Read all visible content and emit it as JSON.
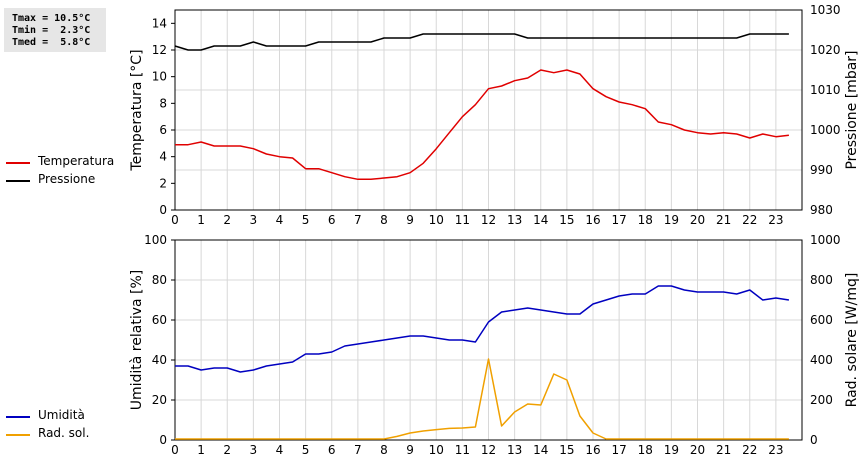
{
  "stats": [
    {
      "label": "Tmax",
      "value": "10.5°C"
    },
    {
      "label": "Tmin",
      "value": "2.3°C"
    },
    {
      "label": "Tmed",
      "value": "5.8°C"
    }
  ],
  "legend_top": [
    {
      "name": "Temperatura",
      "color": "#e00000"
    },
    {
      "name": "Pressione",
      "color": "#000000"
    }
  ],
  "legend_bottom": [
    {
      "name": "Umidità",
      "color": "#0000c0"
    },
    {
      "name": "Rad. sol.",
      "color": "#f0a000"
    }
  ],
  "chart_data": [
    {
      "type": "line",
      "x": [
        0,
        0.5,
        1,
        1.5,
        2,
        2.5,
        3,
        3.5,
        4,
        4.5,
        5,
        5.5,
        6,
        6.5,
        7,
        7.5,
        8,
        8.5,
        9,
        9.5,
        10,
        10.5,
        11,
        11.5,
        12,
        12.5,
        13,
        13.5,
        14,
        14.5,
        15,
        15.5,
        16,
        16.5,
        17,
        17.5,
        18,
        18.5,
        19,
        19.5,
        20,
        20.5,
        21,
        21.5,
        22,
        22.5,
        23,
        23.5
      ],
      "xlim": [
        0,
        24
      ],
      "xticks": [
        0,
        1,
        2,
        3,
        4,
        5,
        6,
        7,
        8,
        9,
        10,
        11,
        12,
        13,
        14,
        15,
        16,
        17,
        18,
        19,
        20,
        21,
        22,
        23
      ],
      "ylabel": "Temperatura [°C]",
      "ylim": [
        0,
        15
      ],
      "yticks": [
        0,
        2,
        4,
        6,
        8,
        10,
        12,
        14
      ],
      "y2label": "Pressione [mbar]",
      "y2lim": [
        980,
        1030
      ],
      "y2ticks": [
        980,
        990,
        1000,
        1010,
        1020,
        1030
      ],
      "grid": true,
      "series": [
        {
          "name": "Temperatura",
          "color": "#e00000",
          "axis": "left",
          "values": [
            4.9,
            4.9,
            5.1,
            4.8,
            4.8,
            4.8,
            4.6,
            4.2,
            4.0,
            3.9,
            3.1,
            3.1,
            2.8,
            2.5,
            2.3,
            2.3,
            2.4,
            2.5,
            2.8,
            3.5,
            4.6,
            5.8,
            7.0,
            7.9,
            9.1,
            9.3,
            9.7,
            9.9,
            10.5,
            10.3,
            10.5,
            10.2,
            9.1,
            8.5,
            8.1,
            7.9,
            7.6,
            6.6,
            6.4,
            6.0,
            5.8,
            5.7,
            5.8,
            5.7,
            5.4,
            5.7,
            5.5,
            5.6
          ]
        },
        {
          "name": "Pressione",
          "color": "#000000",
          "axis": "right",
          "values": [
            1021,
            1020,
            1020,
            1021,
            1021,
            1021,
            1022,
            1021,
            1021,
            1021,
            1021,
            1022,
            1022,
            1022,
            1022,
            1022,
            1023,
            1023,
            1023,
            1024,
            1024,
            1024,
            1024,
            1024,
            1024,
            1024,
            1024,
            1023,
            1023,
            1023,
            1023,
            1023,
            1023,
            1023,
            1023,
            1023,
            1023,
            1023,
            1023,
            1023,
            1023,
            1023,
            1023,
            1023,
            1024,
            1024,
            1024,
            1024
          ]
        }
      ]
    },
    {
      "type": "line",
      "x": [
        0,
        0.5,
        1,
        1.5,
        2,
        2.5,
        3,
        3.5,
        4,
        4.5,
        5,
        5.5,
        6,
        6.5,
        7,
        7.5,
        8,
        8.5,
        9,
        9.5,
        10,
        10.5,
        11,
        11.5,
        12,
        12.5,
        13,
        13.5,
        14,
        14.5,
        15,
        15.5,
        16,
        16.5,
        17,
        17.5,
        18,
        18.5,
        19,
        19.5,
        20,
        20.5,
        21,
        21.5,
        22,
        22.5,
        23,
        23.5
      ],
      "xlim": [
        0,
        24
      ],
      "xticks": [
        0,
        1,
        2,
        3,
        4,
        5,
        6,
        7,
        8,
        9,
        10,
        11,
        12,
        13,
        14,
        15,
        16,
        17,
        18,
        19,
        20,
        21,
        22,
        23
      ],
      "ylabel": "Umidità relativa [%]",
      "ylim": [
        0,
        100
      ],
      "yticks": [
        0,
        20,
        40,
        60,
        80,
        100
      ],
      "y2label": "Rad. solare [W/mq]",
      "y2lim": [
        0,
        1000
      ],
      "y2ticks": [
        0,
        200,
        400,
        600,
        800,
        1000
      ],
      "grid": true,
      "series": [
        {
          "name": "Umidità",
          "color": "#0000c0",
          "axis": "left",
          "values": [
            37,
            37,
            35,
            36,
            36,
            34,
            35,
            37,
            38,
            39,
            43,
            43,
            44,
            47,
            48,
            49,
            50,
            51,
            52,
            52,
            51,
            50,
            50,
            49,
            59,
            64,
            65,
            66,
            65,
            64,
            63,
            63,
            68,
            70,
            72,
            73,
            73,
            77,
            77,
            75,
            74,
            74,
            74,
            73,
            75,
            70,
            71,
            70
          ]
        },
        {
          "name": "Rad. sol.",
          "color": "#f0a000",
          "axis": "right",
          "values": [
            5,
            5,
            5,
            5,
            5,
            5,
            5,
            5,
            5,
            5,
            5,
            5,
            5,
            5,
            5,
            5,
            5,
            18,
            35,
            45,
            52,
            58,
            60,
            65,
            405,
            70,
            140,
            180,
            175,
            330,
            300,
            120,
            35,
            5,
            5,
            5,
            5,
            5,
            5,
            5,
            5,
            5,
            5,
            5,
            5,
            5,
            5,
            5
          ]
        }
      ]
    }
  ]
}
